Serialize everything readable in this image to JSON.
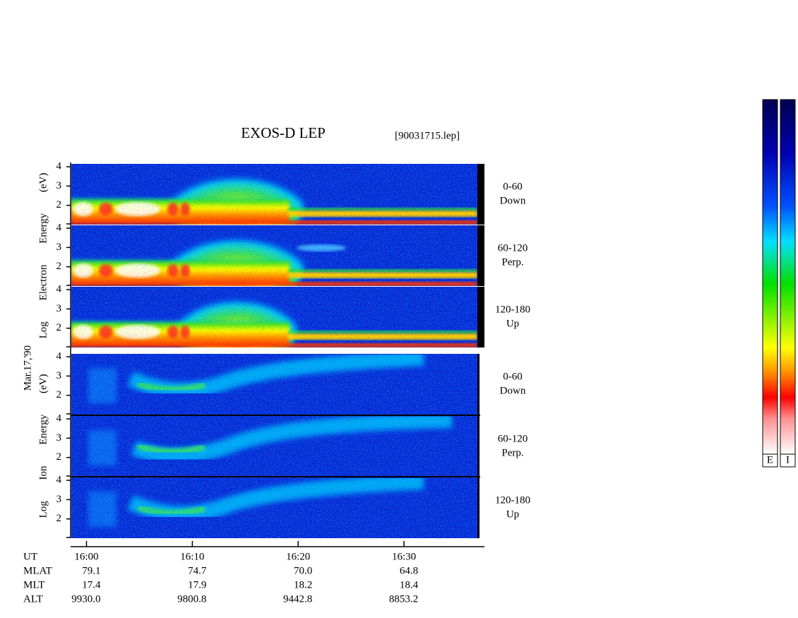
{
  "chart_data": {
    "type": "spectrogram",
    "title": "EXOS-D LEP",
    "file_label": "[90031715.lep]",
    "date_label": "Mar.17,'90",
    "xlim": [
      958.5,
      997.6
    ],
    "xticks": [
      {
        "value": 960,
        "label": "16:00"
      },
      {
        "value": 970,
        "label": "16:10"
      },
      {
        "value": 980,
        "label": "16:20"
      },
      {
        "value": 990,
        "label": "16:30"
      }
    ],
    "ylim": [
      1,
      4.15
    ],
    "yticks": [
      2,
      3,
      4
    ],
    "groups": [
      {
        "species": "electron",
        "axis_label": "Log Electron Energy (eV)",
        "panels": [
          {
            "channel": "0-60",
            "direction": "Down"
          },
          {
            "channel": "60-120",
            "direction": "Perp."
          },
          {
            "channel": "120-180",
            "direction": "Up"
          }
        ]
      },
      {
        "species": "ion",
        "axis_label": "Log Ion Energy (eV)",
        "panels": [
          {
            "channel": "0-60",
            "direction": "Down"
          },
          {
            "channel": "60-120",
            "direction": "Perp."
          },
          {
            "channel": "120-180",
            "direction": "Up"
          }
        ]
      }
    ],
    "ephemeris_title": "UT",
    "ephemeris": [
      {
        "name": "MLAT",
        "values": [
          79.1,
          74.7,
          70.0,
          64.8
        ],
        "value_labels": [
          "79.1",
          "74.7",
          "70.0",
          "64.8"
        ]
      },
      {
        "name": "MLT",
        "values": [
          17.4,
          17.9,
          18.2,
          18.4
        ],
        "value_labels": [
          "17.4",
          "17.9",
          "18.2",
          "18.4"
        ]
      },
      {
        "name": "ALT",
        "values": [
          9930.0,
          9800.8,
          9442.8,
          8853.2
        ],
        "value_labels": [
          "9930.0",
          "9800.8",
          "9442.8",
          "8853.2"
        ]
      }
    ],
    "colorbars": [
      {
        "label": "E"
      },
      {
        "label": "I"
      }
    ]
  }
}
